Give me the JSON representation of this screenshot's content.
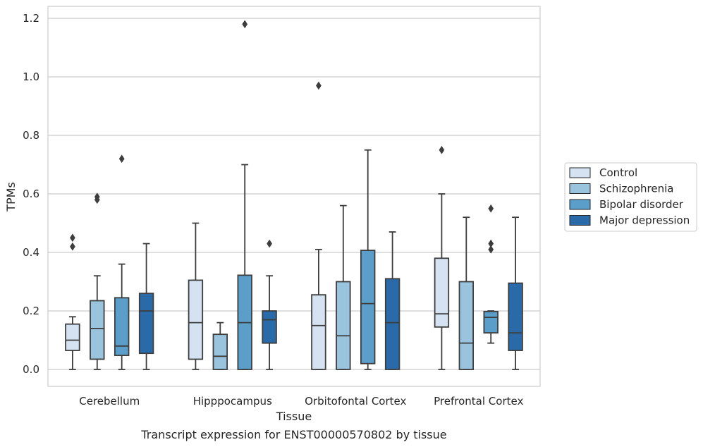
{
  "caption": "Transcript expression for ENST00000570802 by tissue",
  "colors": {
    "Control": "#d4e2f1",
    "Schizophrenia": "#9ac3dd",
    "Bipolar disorder": "#5a9ec9",
    "Major depression": "#2a6aa9",
    "grid": "#cccccc",
    "frame": "#cccccc",
    "line": "#3d3d3d"
  },
  "chart_data": {
    "type": "box",
    "title": "",
    "xlabel": "Tissue",
    "ylabel": "TPMs",
    "ylim": [
      -0.055,
      1.24
    ],
    "yticks": [
      0.0,
      0.2,
      0.4,
      0.6,
      0.8,
      1.0,
      1.2
    ],
    "ytick_labels": [
      "0.0",
      "0.2",
      "0.4",
      "0.6",
      "0.8",
      "1.0",
      "1.2"
    ],
    "grid": "horizontal",
    "legend_position": "right",
    "categories": [
      "Cerebellum",
      "Hipppocampus",
      "Orbitofontal Cortex",
      "Prefrontal Cortex"
    ],
    "series": [
      {
        "name": "Control",
        "boxes": [
          {
            "whislo": 0.0,
            "q1": 0.065,
            "med": 0.1,
            "q3": 0.155,
            "whishi": 0.18,
            "fliers": [
              0.42,
              0.45
            ]
          },
          {
            "whislo": 0.0,
            "q1": 0.035,
            "med": 0.16,
            "q3": 0.305,
            "whishi": 0.5,
            "fliers": []
          },
          {
            "whislo": 0.0,
            "q1": 0.0,
            "med": 0.15,
            "q3": 0.255,
            "whishi": 0.41,
            "fliers": [
              0.97
            ]
          },
          {
            "whislo": 0.0,
            "q1": 0.145,
            "med": 0.19,
            "q3": 0.38,
            "whishi": 0.6,
            "fliers": [
              0.75
            ]
          }
        ]
      },
      {
        "name": "Schizophrenia",
        "boxes": [
          {
            "whislo": 0.0,
            "q1": 0.035,
            "med": 0.14,
            "q3": 0.235,
            "whishi": 0.32,
            "fliers": [
              0.58,
              0.59
            ]
          },
          {
            "whislo": 0.0,
            "q1": 0.0,
            "med": 0.045,
            "q3": 0.12,
            "whishi": 0.16,
            "fliers": []
          },
          {
            "whislo": 0.0,
            "q1": 0.0,
            "med": 0.115,
            "q3": 0.3,
            "whishi": 0.56,
            "fliers": []
          },
          {
            "whislo": 0.0,
            "q1": 0.0,
            "med": 0.09,
            "q3": 0.3,
            "whishi": 0.52,
            "fliers": []
          }
        ]
      },
      {
        "name": "Bipolar disorder",
        "boxes": [
          {
            "whislo": 0.0,
            "q1": 0.048,
            "med": 0.08,
            "q3": 0.245,
            "whishi": 0.36,
            "fliers": [
              0.72
            ]
          },
          {
            "whislo": 0.0,
            "q1": 0.0,
            "med": 0.16,
            "q3": 0.322,
            "whishi": 0.7,
            "fliers": [
              1.18
            ]
          },
          {
            "whislo": 0.0,
            "q1": 0.02,
            "med": 0.225,
            "q3": 0.407,
            "whishi": 0.75,
            "fliers": []
          },
          {
            "whislo": 0.09,
            "q1": 0.125,
            "med": 0.178,
            "q3": 0.198,
            "whishi": 0.2,
            "fliers": [
              0.41,
              0.43,
              0.55
            ]
          }
        ]
      },
      {
        "name": "Major depression",
        "boxes": [
          {
            "whislo": 0.0,
            "q1": 0.055,
            "med": 0.2,
            "q3": 0.26,
            "whishi": 0.43,
            "fliers": []
          },
          {
            "whislo": 0.0,
            "q1": 0.09,
            "med": 0.17,
            "q3": 0.2,
            "whishi": 0.32,
            "fliers": [
              0.43
            ]
          },
          {
            "whislo": 0.0,
            "q1": 0.0,
            "med": 0.16,
            "q3": 0.31,
            "whishi": 0.47,
            "fliers": []
          },
          {
            "whislo": 0.0,
            "q1": 0.065,
            "med": 0.125,
            "q3": 0.295,
            "whishi": 0.52,
            "fliers": []
          }
        ]
      }
    ]
  }
}
